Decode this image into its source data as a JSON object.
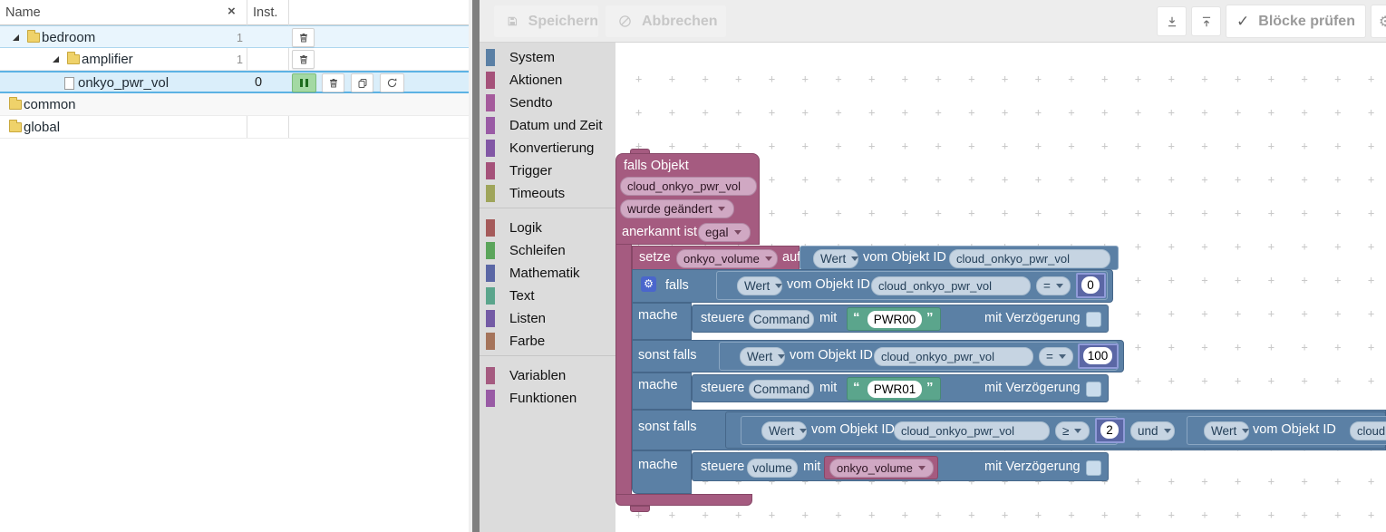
{
  "left_panel": {
    "header": {
      "name": "Name",
      "inst": "Inst."
    },
    "rows": [
      {
        "label": "bedroom",
        "count": "1",
        "inst": ""
      },
      {
        "label": "amplifier",
        "count": "1",
        "inst": ""
      },
      {
        "label": "onkyo_pwr_vol",
        "count": "",
        "inst": "0"
      },
      {
        "label": "common",
        "count": "",
        "inst": ""
      },
      {
        "label": "global",
        "count": "",
        "inst": ""
      }
    ]
  },
  "toolbar": {
    "save": "Speichern",
    "cancel": "Abbrechen",
    "check_blocks": "Blöcke prüfen"
  },
  "toolbox": {
    "categories": [
      {
        "label": "System",
        "color": "#5b80a5"
      },
      {
        "label": "Aktionen",
        "color": "#a5527a"
      },
      {
        "label": "Sendto",
        "color": "#a55b9c"
      },
      {
        "label": "Datum und Zeit",
        "color": "#9a5ba5"
      },
      {
        "label": "Konvertierung",
        "color": "#8257a5"
      },
      {
        "label": "Trigger",
        "color": "#a5527a"
      },
      {
        "label": "Timeouts",
        "color": "#9fa55b"
      },
      {
        "label": "Logik",
        "color": "#a55b5b"
      },
      {
        "label": "Schleifen",
        "color": "#5ba55b"
      },
      {
        "label": "Mathematik",
        "color": "#5b67a5"
      },
      {
        "label": "Text",
        "color": "#5ba58c"
      },
      {
        "label": "Listen",
        "color": "#745ba5"
      },
      {
        "label": "Farbe",
        "color": "#a5745b"
      },
      {
        "label": "Variablen",
        "color": "#a55b80"
      },
      {
        "label": "Funktionen",
        "color": "#995ba5"
      }
    ]
  },
  "workspace": {
    "trigger": {
      "title": "falls Objekt",
      "object": "cloud_onkyo_pwr_vol",
      "event": "wurde geändert",
      "ack_label": "anerkannt ist",
      "ack": "egal"
    },
    "set_block": {
      "setze": "setze",
      "variable": "onkyo_volume",
      "auf": "auf"
    },
    "value": {
      "wert": "Wert",
      "vom": "vom Objekt ID",
      "object": "cloud_onkyo_pwr_vol"
    },
    "if_labels": {
      "falls": "falls",
      "mache": "mache",
      "sonst": "sonst falls"
    },
    "cond_eq0": {
      "op": "=",
      "num": "0"
    },
    "cond_eq100": {
      "op": "=",
      "num": "100"
    },
    "cond_ge2": {
      "op": "≥",
      "num": "2",
      "join": "und",
      "object2": "cloud"
    },
    "ctl_pwr00": {
      "steuere": "steuere",
      "oid": "Command",
      "mit": "mit",
      "text": "PWR00",
      "delay": "mit Verzögerung"
    },
    "ctl_pwr01": {
      "steuere": "steuere",
      "oid": "Command",
      "mit": "mit",
      "text": "PWR01",
      "delay": "mit Verzögerung"
    },
    "ctl_volume": {
      "steuere": "steuere",
      "oid": "volume",
      "mit": "mit",
      "variable": "onkyo_volume",
      "delay": "mit Verzögerung"
    }
  }
}
